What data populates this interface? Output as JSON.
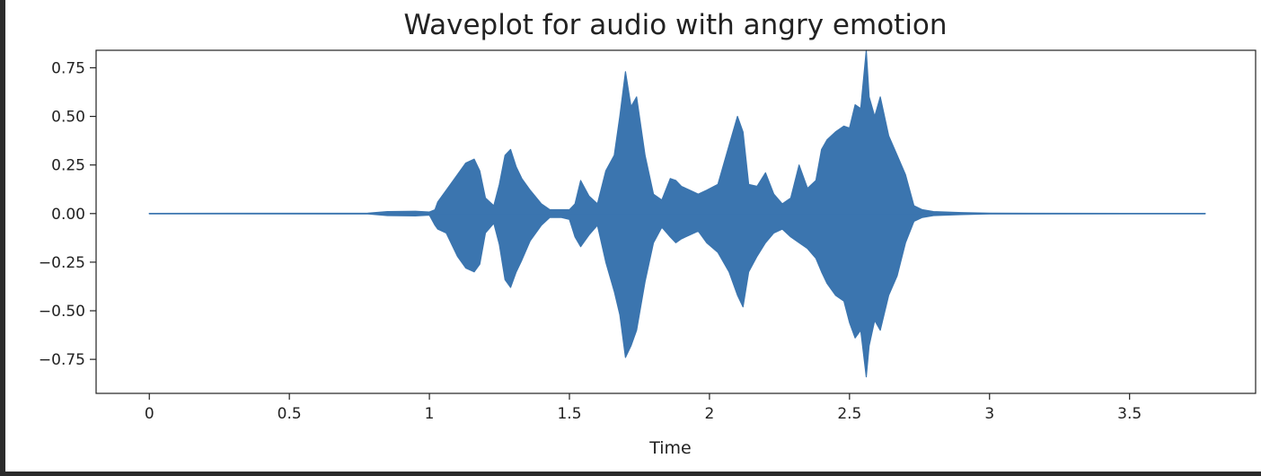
{
  "chart_data": {
    "type": "line",
    "title": "Waveplot for audio with angry emotion",
    "xlabel": "Time",
    "ylabel": "",
    "xlim": [
      -0.19,
      3.95
    ],
    "ylim": [
      -0.925,
      0.84
    ],
    "x_ticks": [
      0,
      0.5,
      1,
      1.5,
      2,
      2.5,
      3,
      3.5
    ],
    "x_tick_labels": [
      "0",
      "0.5",
      "1",
      "1.5",
      "2",
      "2.5",
      "3",
      "3.5"
    ],
    "y_ticks": [
      0.75,
      0.5,
      0.25,
      0.0,
      -0.25,
      -0.5,
      -0.75
    ],
    "y_tick_labels": [
      "0.75",
      "0.50",
      "0.25",
      "0.00",
      "−0.25",
      "−0.50",
      "−0.75"
    ],
    "grid": false,
    "legend": "none",
    "series": [
      {
        "color": "#3b75af",
        "x": [
          0.0,
          0.78,
          0.85,
          0.95,
          1.0,
          1.02,
          1.03,
          1.06,
          1.1,
          1.13,
          1.16,
          1.18,
          1.2,
          1.23,
          1.25,
          1.27,
          1.29,
          1.31,
          1.33,
          1.36,
          1.4,
          1.43,
          1.47,
          1.5,
          1.52,
          1.54,
          1.57,
          1.6,
          1.63,
          1.66,
          1.68,
          1.7,
          1.72,
          1.74,
          1.77,
          1.8,
          1.83,
          1.86,
          1.88,
          1.9,
          1.93,
          1.96,
          1.99,
          2.03,
          2.07,
          2.1,
          2.12,
          2.14,
          2.17,
          2.2,
          2.23,
          2.26,
          2.29,
          2.32,
          2.35,
          2.38,
          2.4,
          2.42,
          2.45,
          2.48,
          2.5,
          2.52,
          2.54,
          2.56,
          2.57,
          2.59,
          2.61,
          2.64,
          2.67,
          2.7,
          2.73,
          2.76,
          2.8,
          2.9,
          3.0,
          3.5,
          3.77
        ],
        "upper": [
          0.001,
          0.002,
          0.01,
          0.012,
          0.008,
          0.02,
          0.06,
          0.12,
          0.2,
          0.26,
          0.28,
          0.22,
          0.08,
          0.04,
          0.15,
          0.3,
          0.33,
          0.24,
          0.18,
          0.12,
          0.05,
          0.02,
          0.02,
          0.02,
          0.05,
          0.17,
          0.09,
          0.05,
          0.22,
          0.3,
          0.5,
          0.73,
          0.55,
          0.6,
          0.3,
          0.1,
          0.07,
          0.18,
          0.17,
          0.14,
          0.12,
          0.1,
          0.12,
          0.15,
          0.35,
          0.5,
          0.42,
          0.15,
          0.14,
          0.21,
          0.1,
          0.05,
          0.08,
          0.25,
          0.13,
          0.17,
          0.33,
          0.38,
          0.42,
          0.45,
          0.44,
          0.56,
          0.54,
          0.84,
          0.6,
          0.5,
          0.6,
          0.4,
          0.3,
          0.2,
          0.04,
          0.02,
          0.01,
          0.005,
          0.002,
          0.001,
          0.001
        ],
        "lower": [
          -0.001,
          -0.002,
          -0.01,
          -0.012,
          -0.008,
          -0.06,
          -0.08,
          -0.1,
          -0.22,
          -0.28,
          -0.3,
          -0.26,
          -0.1,
          -0.05,
          -0.16,
          -0.34,
          -0.38,
          -0.3,
          -0.24,
          -0.14,
          -0.06,
          -0.02,
          -0.02,
          -0.03,
          -0.12,
          -0.17,
          -0.11,
          -0.06,
          -0.25,
          -0.4,
          -0.52,
          -0.74,
          -0.68,
          -0.6,
          -0.35,
          -0.15,
          -0.07,
          -0.12,
          -0.15,
          -0.13,
          -0.11,
          -0.09,
          -0.15,
          -0.2,
          -0.3,
          -0.42,
          -0.48,
          -0.3,
          -0.22,
          -0.15,
          -0.1,
          -0.08,
          -0.12,
          -0.15,
          -0.18,
          -0.23,
          -0.3,
          -0.36,
          -0.42,
          -0.45,
          -0.56,
          -0.64,
          -0.6,
          -0.84,
          -0.68,
          -0.55,
          -0.6,
          -0.42,
          -0.32,
          -0.15,
          -0.04,
          -0.02,
          -0.01,
          -0.005,
          -0.002,
          -0.001,
          -0.001
        ]
      }
    ]
  }
}
